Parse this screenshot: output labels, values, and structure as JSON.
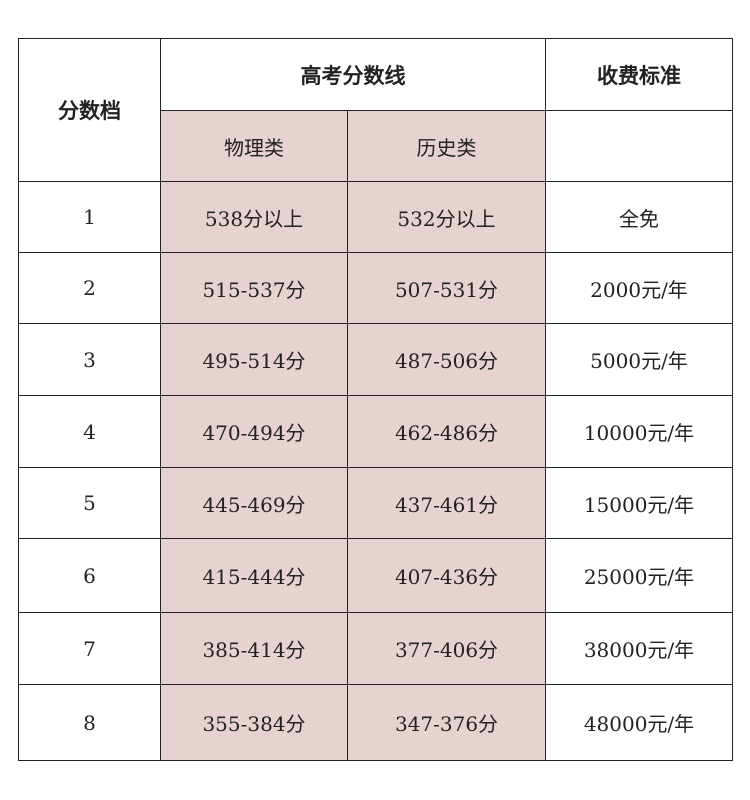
{
  "header": {
    "tier": "分数档",
    "score_line": "高考分数线",
    "fee": "收费标准",
    "physics": "物理类",
    "history": "历史类"
  },
  "colors": {
    "highlight": "#e6d3d1",
    "border": "#222222"
  },
  "rows": [
    {
      "tier": "1",
      "physics": "538分以上",
      "history": "532分以上",
      "fee": "全免"
    },
    {
      "tier": "2",
      "physics": "515-537分",
      "history": "507-531分",
      "fee": "2000元/年"
    },
    {
      "tier": "3",
      "physics": "495-514分",
      "history": "487-506分",
      "fee": "5000元/年"
    },
    {
      "tier": "4",
      "physics": "470-494分",
      "history": "462-486分",
      "fee": "10000元/年"
    },
    {
      "tier": "5",
      "physics": "445-469分",
      "history": "437-461分",
      "fee": "15000元/年"
    },
    {
      "tier": "6",
      "physics": "415-444分",
      "history": "407-436分",
      "fee": "25000元/年"
    },
    {
      "tier": "7",
      "physics": "385-414分",
      "history": "377-406分",
      "fee": "38000元/年"
    },
    {
      "tier": "8",
      "physics": "355-384分",
      "history": "347-376分",
      "fee": "48000元/年"
    }
  ]
}
